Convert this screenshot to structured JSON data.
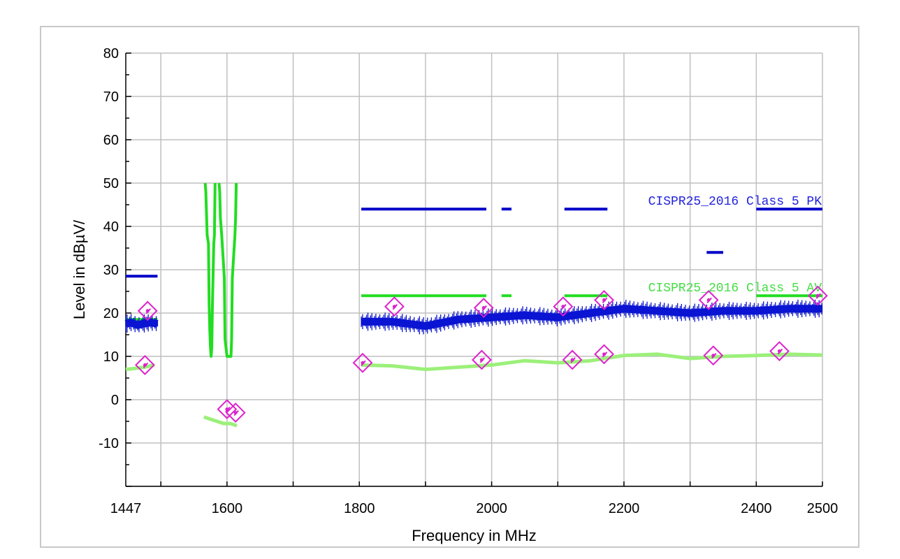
{
  "chart_data": {
    "type": "line",
    "xlabel": "Frequency in MHz",
    "ylabel": "Level in dBµV/",
    "xlim": [
      1447,
      2500
    ],
    "ylim": [
      -20,
      80
    ],
    "x_ticks": [
      1447,
      1600,
      1800,
      2000,
      2200,
      2400,
      2500
    ],
    "y_ticks": [
      -10,
      0,
      10,
      20,
      30,
      40,
      50,
      60,
      70,
      80
    ],
    "grid": true,
    "series": [
      {
        "name": "CISPR25_2016 Class 5 PK",
        "kind": "limit",
        "color": "#0000c8",
        "segments": [
          {
            "x": [
              1447,
              1495
            ],
            "y": [
              28.5,
              28.5
            ]
          },
          {
            "x": [
              1803,
              1992
            ],
            "y": [
              44,
              44
            ]
          },
          {
            "x": [
              2015,
              2030
            ],
            "y": [
              44,
              44
            ]
          },
          {
            "x": [
              2110,
              2175
            ],
            "y": [
              44,
              44
            ]
          },
          {
            "x": [
              2325,
              2350
            ],
            "y": [
              34,
              34
            ]
          },
          {
            "x": [
              2400,
              2500
            ],
            "y": [
              44,
              44
            ]
          }
        ]
      },
      {
        "name": "CISPR25_2016 Class 5 AV",
        "kind": "limit",
        "color": "#22dd22",
        "segments": [
          {
            "x": [
              1447,
              1495
            ],
            "y": [
              18.5,
              18.5
            ]
          },
          {
            "x": [
              1803,
              1992
            ],
            "y": [
              24,
              24
            ]
          },
          {
            "x": [
              2015,
              2030
            ],
            "y": [
              24,
              24
            ]
          },
          {
            "x": [
              2110,
              2175
            ],
            "y": [
              24,
              24
            ]
          },
          {
            "x": [
              2400,
              2500
            ],
            "y": [
              24,
              24
            ]
          }
        ],
        "notch_lines": [
          {
            "x": [
              1567,
              1568,
              1570,
              1572,
              1573,
              1574,
              1575,
              1576,
              1576,
              1577,
              1578,
              1580,
              1581,
              1582
            ],
            "y": [
              50,
              48,
              38,
              36,
              22,
              16,
              12,
              10,
              10,
              12,
              22,
              36,
              38,
              50
            ]
          },
          {
            "x": [
              1588,
              1589,
              1590,
              1592,
              1594,
              1596,
              1597,
              1600,
              1603,
              1606,
              1607,
              1608,
              1610,
              1612,
              1613,
              1614
            ],
            "y": [
              50,
              48,
              42,
              38,
              33,
              28,
              14,
              10,
              10,
              10,
              14,
              28,
              33,
              38,
              42,
              50
            ]
          }
        ]
      },
      {
        "name": "",
        "kind": "peak",
        "color": "#0a14d2",
        "segments": [
          {
            "x": [
              1447,
              1455,
              1465,
              1475,
              1485,
              1495
            ],
            "y": [
              17.5,
              17.8,
              17.2,
              17.6,
              17.8,
              17.5
            ]
          },
          {
            "x": [
              1803,
              1850,
              1900,
              1950,
              2000,
              2050,
              2100,
              2150,
              2200,
              2250,
              2300,
              2350,
              2400,
              2450,
              2500
            ],
            "y": [
              18,
              18,
              17,
              18.5,
              19,
              19.5,
              19,
              20,
              21,
              20.5,
              20,
              20.5,
              20.5,
              21,
              21
            ]
          }
        ]
      },
      {
        "name": "",
        "kind": "average",
        "color": "#9cf07a",
        "segments": [
          {
            "x": [
              1447,
              1460,
              1475,
              1490
            ],
            "y": [
              7,
              7.2,
              7.5,
              8
            ]
          },
          {
            "x": [
              1565,
              1575,
              1585,
              1595,
              1605,
              1615
            ],
            "y": [
              -4,
              -4.5,
              -5,
              -5.5,
              -5.5,
              -6
            ]
          },
          {
            "x": [
              1803,
              1850,
              1900,
              1950,
              2000,
              2050,
              2100,
              2150,
              2200,
              2250,
              2300,
              2350,
              2400,
              2450,
              2500
            ],
            "y": [
              8,
              7.8,
              7,
              7.5,
              8,
              9,
              8.5,
              9,
              10.2,
              10.5,
              9.5,
              10,
              10.2,
              10.5,
              10.3
            ]
          }
        ]
      }
    ],
    "markers": [
      {
        "x": 1480,
        "y": 20.5
      },
      {
        "x": 1476,
        "y": 8
      },
      {
        "x": 1600,
        "y": -2.2
      },
      {
        "x": 1613,
        "y": -3
      },
      {
        "x": 1805,
        "y": 8.5
      },
      {
        "x": 1853,
        "y": 21.5
      },
      {
        "x": 1985,
        "y": 9.2
      },
      {
        "x": 1988,
        "y": 21.2
      },
      {
        "x": 2108,
        "y": 21.5
      },
      {
        "x": 2122,
        "y": 9.2
      },
      {
        "x": 2170,
        "y": 10.5
      },
      {
        "x": 2170,
        "y": 23
      },
      {
        "x": 2328,
        "y": 23
      },
      {
        "x": 2335,
        "y": 10.2
      },
      {
        "x": 2435,
        "y": 11.2
      },
      {
        "x": 2493,
        "y": 24
      }
    ],
    "marker_color": "#dd22cc",
    "annotations": [
      {
        "text": "CISPR25_2016 Class 5 PK",
        "x": 2499,
        "y": 45,
        "color": "#2222dd"
      },
      {
        "text": "CISPR25_2016 Class 5 AV",
        "x": 2499,
        "y": 25,
        "color": "#44dd44"
      }
    ]
  }
}
